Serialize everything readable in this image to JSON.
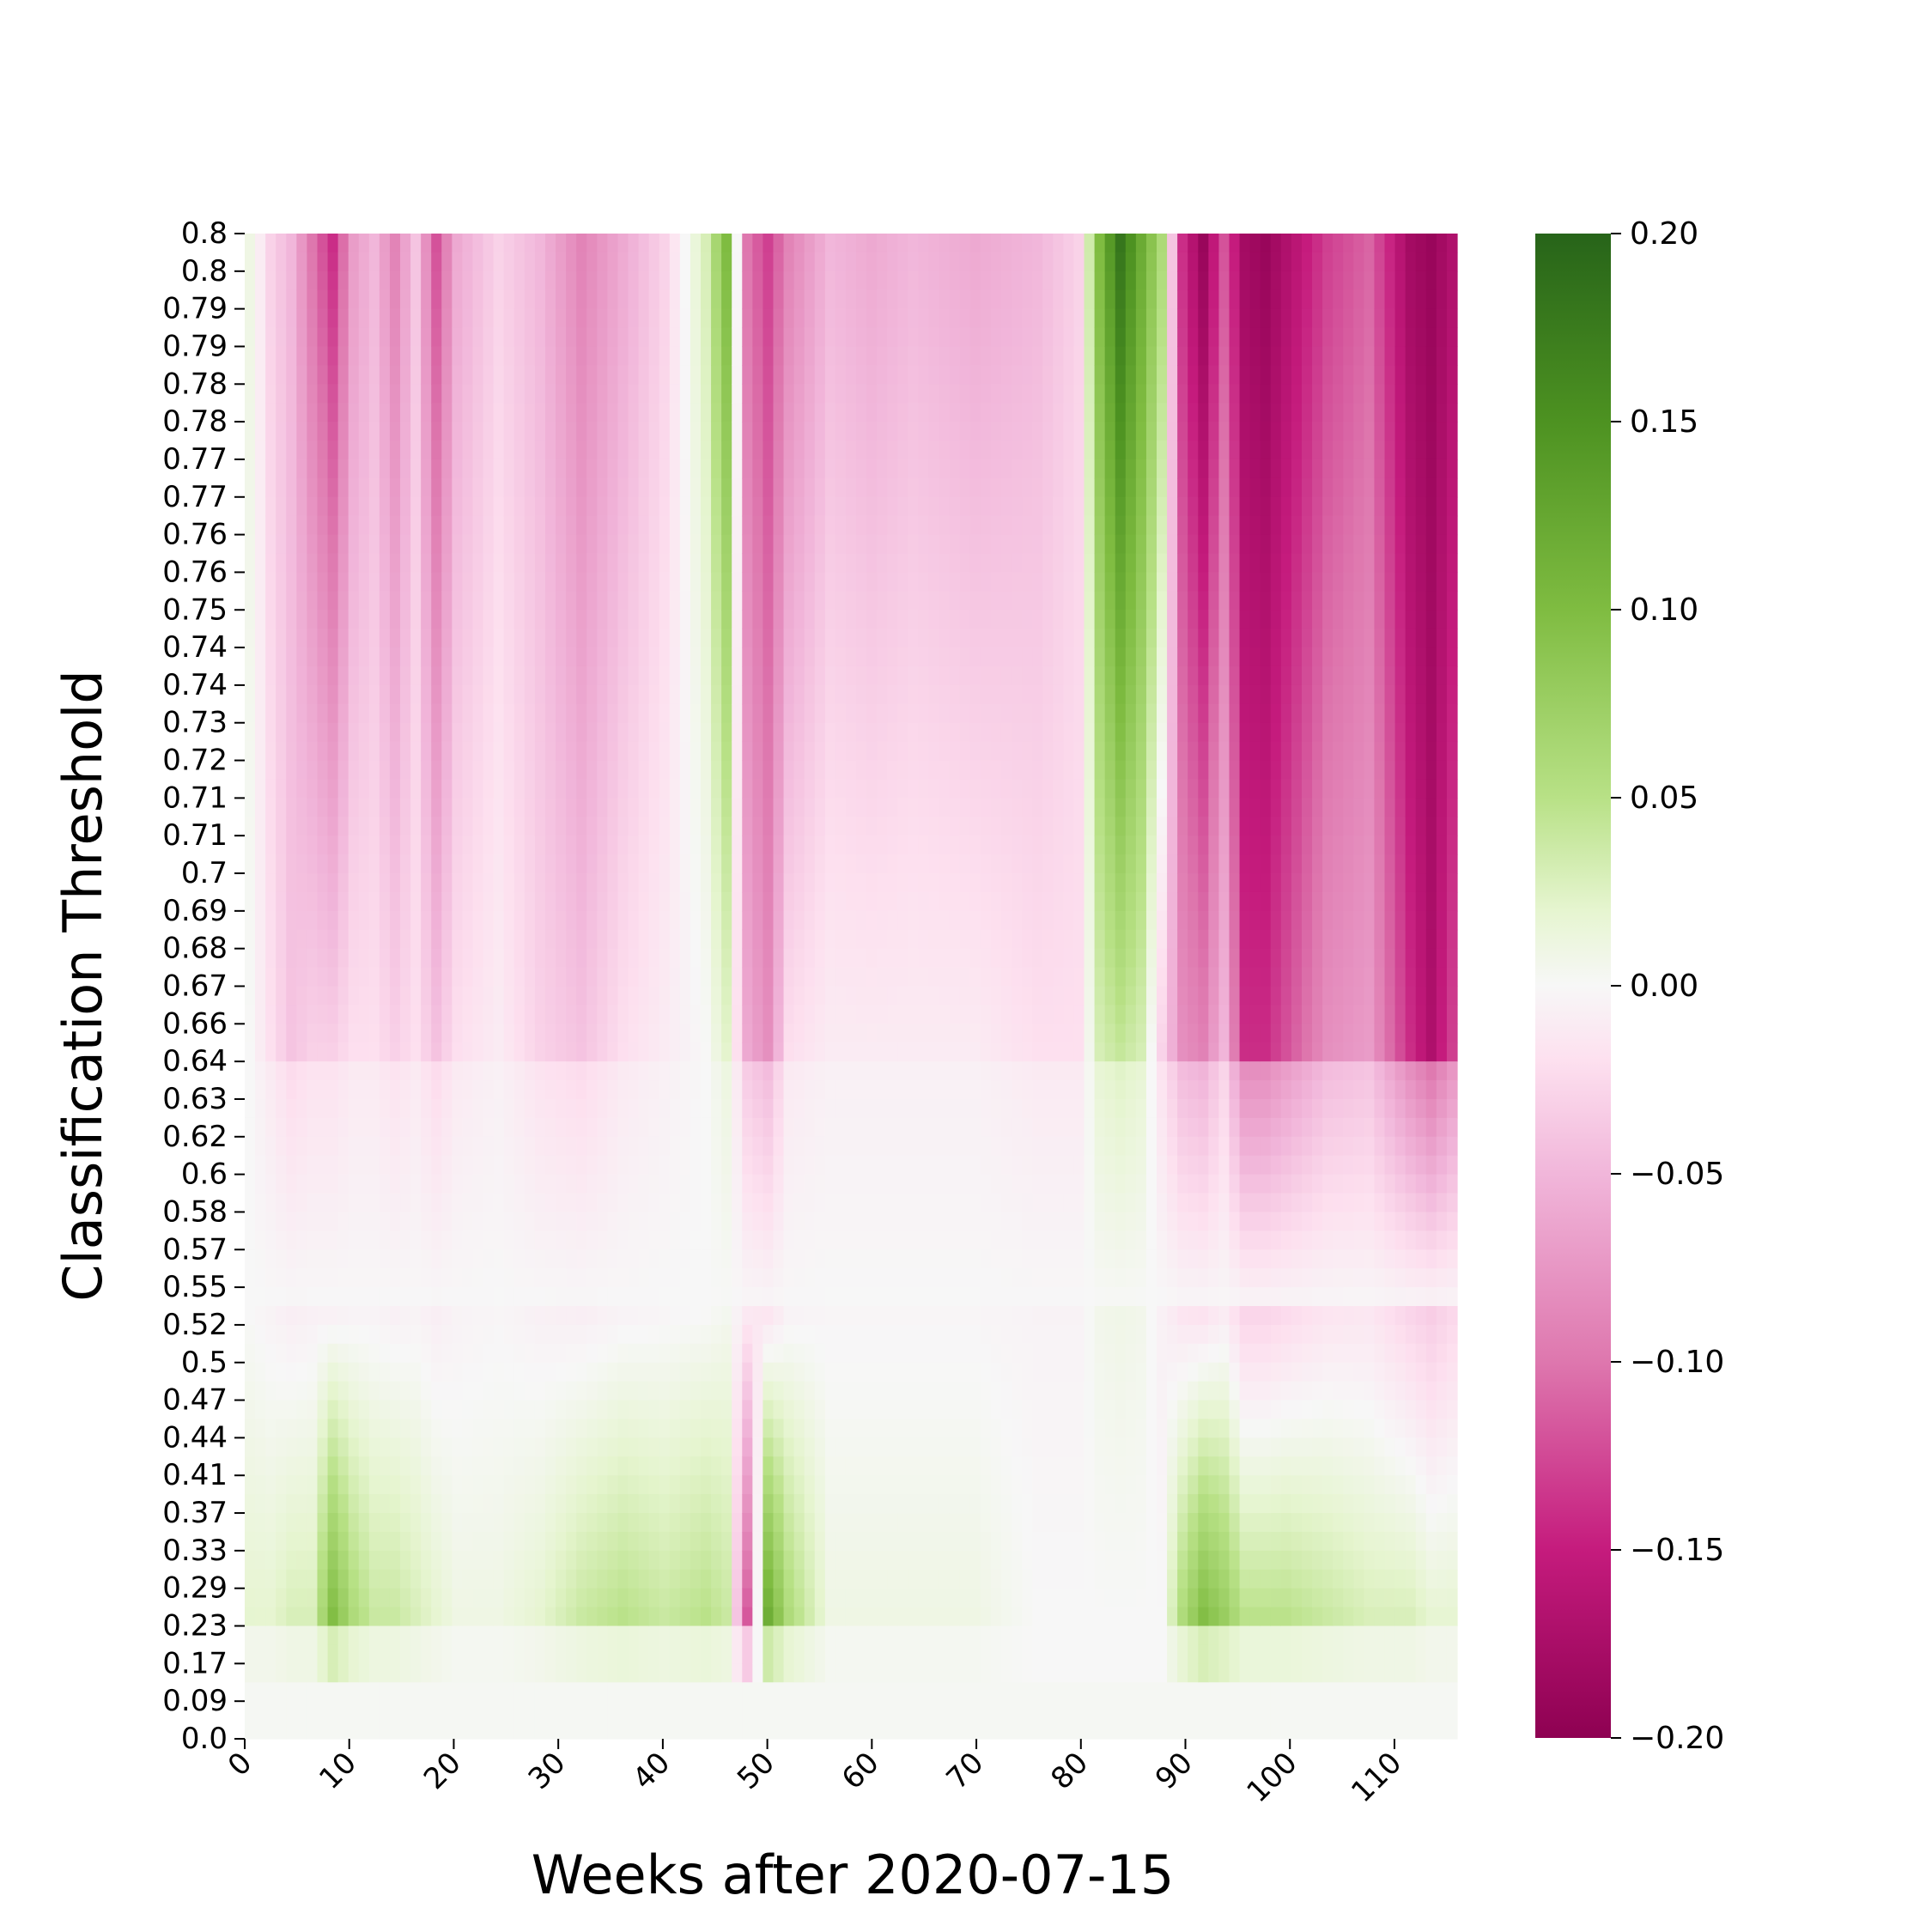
{
  "chart_data": {
    "type": "heatmap",
    "title": "",
    "xlabel": "Weeks after 2020-07-15",
    "ylabel": "Classification Threshold",
    "x_ticks": [
      "0",
      "10",
      "20",
      "30",
      "40",
      "50",
      "60",
      "70",
      "80",
      "90",
      "100",
      "110"
    ],
    "x_range": [
      0,
      116
    ],
    "y_ticks": [
      "0.8",
      "0.8",
      "0.79",
      "0.79",
      "0.78",
      "0.78",
      "0.77",
      "0.77",
      "0.76",
      "0.76",
      "0.75",
      "0.74",
      "0.74",
      "0.73",
      "0.72",
      "0.71",
      "0.71",
      "0.7",
      "0.69",
      "0.68",
      "0.67",
      "0.66",
      "0.64",
      "0.63",
      "0.62",
      "0.6",
      "0.58",
      "0.57",
      "0.55",
      "0.52",
      "0.5",
      "0.47",
      "0.44",
      "0.41",
      "0.37",
      "0.33",
      "0.29",
      "0.23",
      "0.17",
      "0.09",
      "0.0"
    ],
    "colorbar": {
      "ticks": [
        "0.20",
        "0.15",
        "0.10",
        "0.05",
        "0.00",
        "−0.05",
        "−0.10",
        "−0.15",
        "−0.20"
      ],
      "range": [
        -0.2,
        0.2
      ],
      "colormap": "PiYG",
      "low_color": "#8e0152",
      "mid_color": "#f7f7f7",
      "high_color": "#276419"
    },
    "column_profiles_note_free": true,
    "columns": [
      {
        "x": 0,
        "top": 0.01,
        "mid": 0.0,
        "low": 0.02
      },
      {
        "x": 2,
        "top": -0.03,
        "mid": -0.02,
        "low": 0.02
      },
      {
        "x": 4,
        "top": -0.05,
        "mid": -0.04,
        "low": 0.03
      },
      {
        "x": 6,
        "top": -0.1,
        "mid": -0.03,
        "low": 0.03
      },
      {
        "x": 8,
        "top": -0.14,
        "mid": -0.03,
        "low": 0.1
      },
      {
        "x": 10,
        "top": -0.07,
        "mid": -0.02,
        "low": 0.06
      },
      {
        "x": 12,
        "top": -0.05,
        "mid": -0.02,
        "low": 0.04
      },
      {
        "x": 14,
        "top": -0.09,
        "mid": -0.03,
        "low": 0.04
      },
      {
        "x": 16,
        "top": -0.04,
        "mid": -0.02,
        "low": 0.03
      },
      {
        "x": 18,
        "top": -0.12,
        "mid": -0.04,
        "low": 0.02
      },
      {
        "x": 20,
        "top": -0.06,
        "mid": -0.02,
        "low": 0.01
      },
      {
        "x": 24,
        "top": -0.03,
        "mid": -0.01,
        "low": 0.01
      },
      {
        "x": 28,
        "top": -0.05,
        "mid": -0.03,
        "low": 0.02
      },
      {
        "x": 32,
        "top": -0.09,
        "mid": -0.04,
        "low": 0.04
      },
      {
        "x": 36,
        "top": -0.06,
        "mid": -0.02,
        "low": 0.05
      },
      {
        "x": 40,
        "top": -0.03,
        "mid": -0.01,
        "low": 0.04
      },
      {
        "x": 44,
        "top": 0.03,
        "mid": 0.0,
        "low": 0.05
      },
      {
        "x": 46,
        "top": 0.1,
        "mid": 0.02,
        "low": 0.04
      },
      {
        "x": 48,
        "top": -0.1,
        "mid": -0.06,
        "low": -0.12
      },
      {
        "x": 50,
        "top": -0.13,
        "mid": -0.08,
        "low": 0.12
      },
      {
        "x": 52,
        "top": -0.09,
        "mid": -0.02,
        "low": 0.06
      },
      {
        "x": 56,
        "top": -0.05,
        "mid": -0.01,
        "low": 0.01
      },
      {
        "x": 60,
        "top": -0.06,
        "mid": -0.01,
        "low": 0.01
      },
      {
        "x": 64,
        "top": -0.05,
        "mid": -0.01,
        "low": 0.01
      },
      {
        "x": 70,
        "top": -0.06,
        "mid": -0.01,
        "low": 0.01
      },
      {
        "x": 76,
        "top": -0.05,
        "mid": -0.02,
        "low": 0.0
      },
      {
        "x": 80,
        "top": -0.03,
        "mid": -0.02,
        "low": 0.0
      },
      {
        "x": 82,
        "top": 0.1,
        "mid": 0.03,
        "low": 0.0
      },
      {
        "x": 84,
        "top": 0.18,
        "mid": 0.04,
        "low": 0.0
      },
      {
        "x": 86,
        "top": 0.12,
        "mid": 0.03,
        "low": 0.0
      },
      {
        "x": 88,
        "top": 0.06,
        "mid": -0.03,
        "low": 0.0
      },
      {
        "x": 90,
        "top": -0.14,
        "mid": -0.08,
        "low": 0.06
      },
      {
        "x": 92,
        "top": -0.19,
        "mid": -0.09,
        "low": 0.1
      },
      {
        "x": 94,
        "top": -0.12,
        "mid": -0.05,
        "low": 0.08
      },
      {
        "x": 96,
        "top": -0.18,
        "mid": -0.14,
        "low": 0.05
      },
      {
        "x": 98,
        "top": -0.19,
        "mid": -0.14,
        "low": 0.05
      },
      {
        "x": 100,
        "top": -0.17,
        "mid": -0.12,
        "low": 0.05
      },
      {
        "x": 104,
        "top": -0.13,
        "mid": -0.08,
        "low": 0.04
      },
      {
        "x": 108,
        "top": -0.11,
        "mid": -0.07,
        "low": 0.03
      },
      {
        "x": 112,
        "top": -0.18,
        "mid": -0.14,
        "low": 0.03
      },
      {
        "x": 114,
        "top": -0.19,
        "mid": -0.17,
        "low": 0.02
      },
      {
        "x": 116,
        "top": -0.17,
        "mid": -0.13,
        "low": 0.02
      }
    ]
  }
}
